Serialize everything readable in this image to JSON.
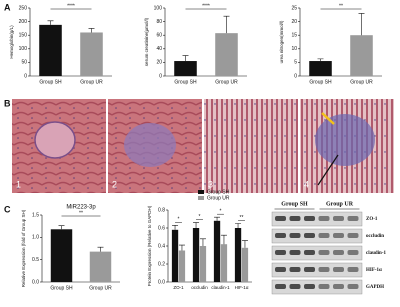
{
  "panel_labels": [
    "A",
    "B",
    "C"
  ],
  "histology": {
    "labels": [
      "1",
      "2",
      "3",
      "4"
    ]
  },
  "chart_data": [
    {
      "type": "bar",
      "ylabel": "Hemoglobin(g/L)",
      "categories": [
        "Group SH",
        "Group UR"
      ],
      "values": [
        188,
        160
      ],
      "errors": [
        15,
        15
      ],
      "colors": [
        "#111111",
        "#9a9a9a"
      ],
      "ylim": [
        0,
        250
      ],
      "yticks": [
        0,
        50,
        100,
        150,
        200,
        250
      ],
      "annotations": [
        "****"
      ]
    },
    {
      "type": "bar",
      "ylabel": "serum creatinine(μmol/l)",
      "categories": [
        "Group SH",
        "Group UR"
      ],
      "values": [
        22,
        63
      ],
      "errors": [
        8,
        25
      ],
      "colors": [
        "#111111",
        "#9a9a9a"
      ],
      "ylim": [
        0,
        100
      ],
      "yticks": [
        0,
        20,
        40,
        60,
        80,
        100
      ],
      "annotations": [
        "****"
      ]
    },
    {
      "type": "bar",
      "ylabel": "urea nitrogen(mmol/l)",
      "categories": [
        "Group SH",
        "Group UR"
      ],
      "values": [
        5.5,
        15
      ],
      "errors": [
        0.8,
        8
      ],
      "colors": [
        "#111111",
        "#9a9a9a"
      ],
      "ylim": [
        0,
        25
      ],
      "yticks": [
        0,
        5,
        10,
        15,
        20,
        25
      ],
      "annotations": [
        "**"
      ]
    },
    {
      "type": "bar",
      "title": "MiR223-3p",
      "ylabel": "Relative Expression (fold of Group SH)",
      "categories": [
        "Group SH",
        "Group UR"
      ],
      "values": [
        1.18,
        0.68
      ],
      "errors": [
        0.08,
        0.1
      ],
      "colors": [
        "#111111",
        "#9a9a9a"
      ],
      "ylim": [
        0,
        1.5
      ],
      "yticks": [
        {
          "value": 0,
          "label": "0.0"
        },
        0.5,
        {
          "value": 1,
          "label": "1.0"
        },
        1.5
      ],
      "annotations": [
        "**"
      ]
    },
    {
      "type": "bar",
      "ylabel": "Protein Expression (Relative to GAPDH)",
      "categories": [
        "ZO-1",
        "occludin",
        "claudin-1",
        "HIF-1α"
      ],
      "series": [
        {
          "name": "Group SH",
          "color": "#111111",
          "values": [
            0.58,
            0.6,
            0.68,
            0.6
          ],
          "errors": [
            0.05,
            0.06,
            0.04,
            0.05
          ]
        },
        {
          "name": "Group UR",
          "color": "#9a9a9a",
          "values": [
            0.35,
            0.4,
            0.42,
            0.38
          ],
          "errors": [
            0.06,
            0.08,
            0.1,
            0.08
          ]
        }
      ],
      "ylim": [
        0,
        0.8
      ],
      "yticks": [
        {
          "value": 0,
          "label": "0.0"
        },
        0.2,
        0.4,
        0.6,
        0.8
      ],
      "annotations": [
        "*",
        "*",
        "*",
        "**"
      ]
    }
  ],
  "blot": {
    "groups": [
      "Group SH",
      "Group UR"
    ],
    "rows": [
      "ZO-1",
      "occludin",
      "claudin-1",
      "HIF-1α",
      "GAPDH"
    ]
  }
}
